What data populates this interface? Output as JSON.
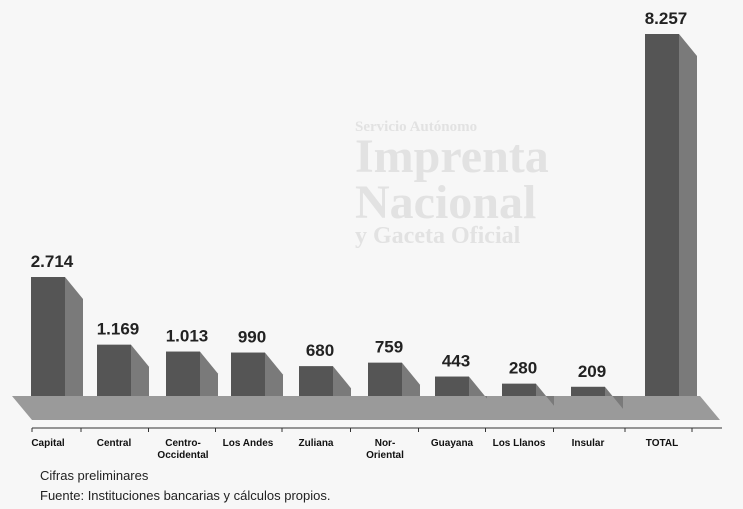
{
  "watermark": {
    "line1": "Servicio Autónomo",
    "line2": "Imprenta",
    "line3": "Nacional",
    "line4": "y Gaceta Oficial"
  },
  "chart_data": {
    "type": "bar",
    "categories": [
      "Capital",
      "Central",
      "Centro-\nOccidental",
      "Los Andes",
      "Zuliana",
      "Nor-\nOriental",
      "Guayana",
      "Los Llanos",
      "Insular",
      "TOTAL"
    ],
    "values": [
      2714,
      1169,
      1013,
      990,
      680,
      759,
      443,
      280,
      209,
      8257
    ],
    "value_labels": [
      "2.714",
      "1.169",
      "1.013",
      "990",
      "680",
      "759",
      "443",
      "280",
      "209",
      "8.257"
    ],
    "bar_color": "#555555",
    "ylim": [
      0,
      8257
    ]
  },
  "notes": {
    "line1": "Cifras preliminares",
    "line2": "Fuente: Instituciones bancarias y cálculos propios."
  }
}
